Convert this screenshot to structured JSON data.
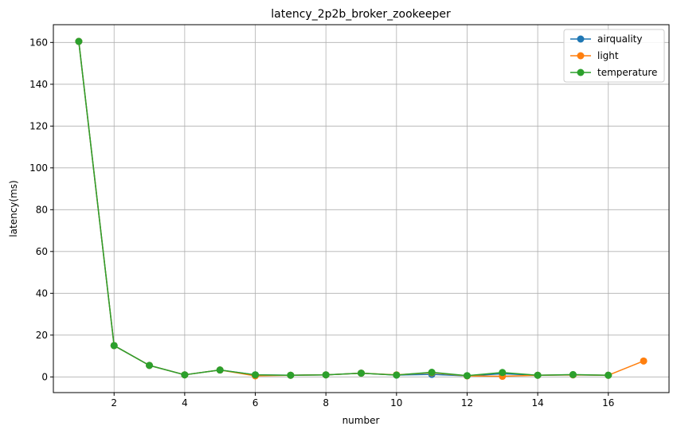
{
  "chart_data": {
    "type": "line",
    "title": "latency_2p2b_broker_zookeeper",
    "xlabel": "number",
    "ylabel": "latency(ms)",
    "xlim": [
      0.28,
      17.72
    ],
    "ylim": [
      -7.5,
      168.5
    ],
    "xticks": [
      2,
      4,
      6,
      8,
      10,
      12,
      14,
      16
    ],
    "yticks": [
      0,
      20,
      40,
      60,
      80,
      100,
      120,
      140,
      160
    ],
    "grid": true,
    "legend_position": "top-right",
    "series": [
      {
        "name": "airquality",
        "color": "#1f77b4",
        "x": [
          1,
          2,
          3,
          4,
          5,
          6,
          7,
          8,
          9,
          10,
          11,
          12,
          13,
          14,
          15,
          16
        ],
        "values": [
          160.5,
          15.0,
          5.5,
          1.0,
          3.3,
          1.0,
          0.8,
          1.0,
          1.8,
          0.9,
          1.2,
          0.5,
          1.5,
          0.8,
          1.0,
          0.8
        ]
      },
      {
        "name": "light",
        "color": "#ff7f0e",
        "x": [
          1,
          2,
          3,
          4,
          5,
          6,
          7,
          8,
          9,
          10,
          11,
          12,
          13,
          14,
          15,
          16,
          17
        ],
        "values": [
          160.5,
          15.0,
          5.5,
          1.0,
          3.3,
          0.5,
          0.8,
          1.0,
          1.8,
          1.0,
          2.0,
          0.5,
          0.3,
          0.8,
          1.0,
          0.8,
          7.6
        ]
      },
      {
        "name": "temperature",
        "color": "#2ca02c",
        "x": [
          1,
          2,
          3,
          4,
          5,
          6,
          7,
          8,
          9,
          10,
          11,
          12,
          13,
          14,
          15,
          16
        ],
        "values": [
          160.5,
          15.0,
          5.5,
          1.0,
          3.3,
          1.0,
          0.8,
          1.0,
          1.8,
          0.9,
          2.2,
          0.6,
          2.1,
          0.8,
          1.1,
          0.8
        ]
      }
    ]
  }
}
